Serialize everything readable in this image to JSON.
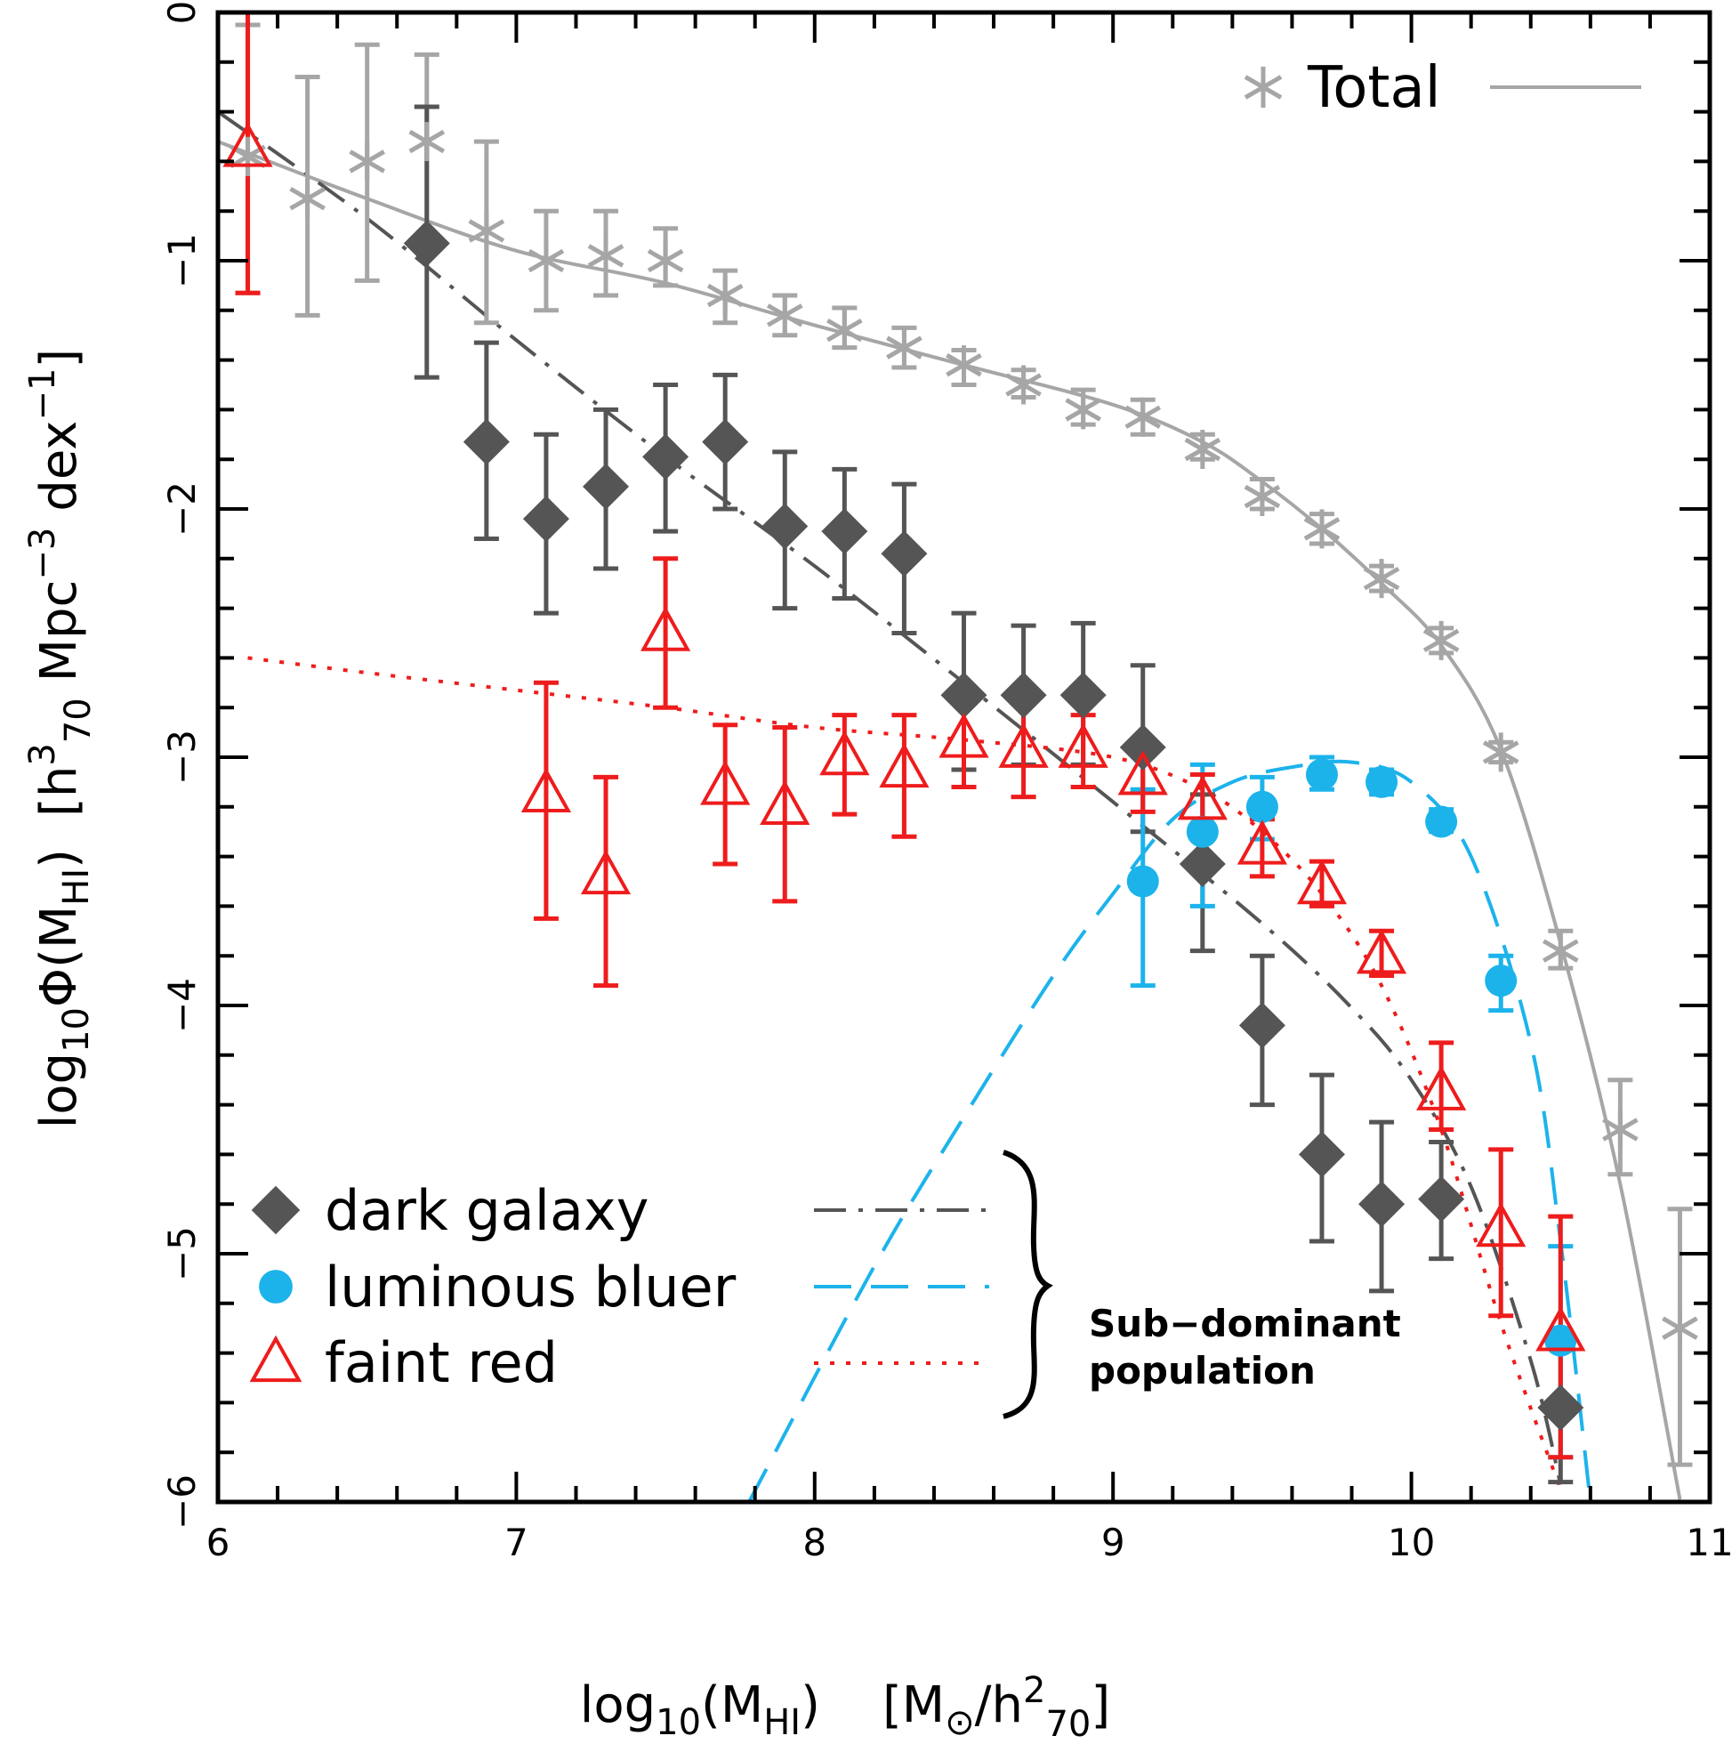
{
  "chart_data": {
    "type": "scatter",
    "title": "",
    "x_axis": {
      "label": "log10(MHI)   [M⊙/h²70]",
      "label_parts": {
        "log": "log",
        "log_sub": "10",
        "m": "(M",
        "m_sub": "HI",
        "paren": ")",
        "bracket_open": "[M",
        "sun": "⊙",
        "slash": "/h",
        "sup2": "2",
        "sub70": "70",
        "bracket_close": "]"
      },
      "range": [
        6,
        11
      ],
      "ticks": [
        6,
        7,
        8,
        9,
        10,
        11
      ],
      "tick_labels": [
        "6",
        "7",
        "8",
        "9",
        "10",
        "11"
      ],
      "minor_step": 0.2
    },
    "y_axis": {
      "label": "log10Φ(MHI)  [h³70 Mpc⁻³ dex⁻¹]",
      "label_parts": {
        "log": "log",
        "log_sub": "10",
        "phi": "Φ(M",
        "phi_sub": "HI",
        "paren": ")",
        "bracket_open": "[h",
        "sup3": "3",
        "sub70": "70",
        "mpc": "Mpc",
        "sup_m3": "−3",
        "dex": "dex",
        "sup_m1": "−1",
        "bracket_close": "]"
      },
      "range": [
        -6,
        0
      ],
      "ticks": [
        0,
        -1,
        -2,
        -3,
        -4,
        -5,
        -6
      ],
      "tick_labels": [
        "0",
        "−1",
        "−2",
        "−3",
        "−4",
        "−5",
        "−6"
      ],
      "minor_step": 0.2
    },
    "grid": false,
    "series": [
      {
        "name": "Total",
        "marker": "asterisk",
        "color": "#a6a6a6",
        "points": [
          {
            "x": 6.1,
            "y": -0.58,
            "lo": -1.13,
            "hi": -0.05
          },
          {
            "x": 6.3,
            "y": -0.75,
            "lo": -1.22,
            "hi": -0.26
          },
          {
            "x": 6.5,
            "y": -0.6,
            "lo": -1.08,
            "hi": -0.13
          },
          {
            "x": 6.7,
            "y": -0.52,
            "lo": -0.9,
            "hi": -0.17
          },
          {
            "x": 6.9,
            "y": -0.88,
            "lo": -1.25,
            "hi": -0.52
          },
          {
            "x": 7.1,
            "y": -1.0,
            "lo": -1.2,
            "hi": -0.8
          },
          {
            "x": 7.3,
            "y": -0.98,
            "lo": -1.14,
            "hi": -0.8
          },
          {
            "x": 7.5,
            "y": -1.0,
            "lo": -1.1,
            "hi": -0.87
          },
          {
            "x": 7.7,
            "y": -1.14,
            "lo": -1.25,
            "hi": -1.04
          },
          {
            "x": 7.9,
            "y": -1.22,
            "lo": -1.3,
            "hi": -1.14
          },
          {
            "x": 8.1,
            "y": -1.28,
            "lo": -1.35,
            "hi": -1.19
          },
          {
            "x": 8.3,
            "y": -1.35,
            "lo": -1.43,
            "hi": -1.27
          },
          {
            "x": 8.5,
            "y": -1.42,
            "lo": -1.5,
            "hi": -1.36
          },
          {
            "x": 8.7,
            "y": -1.5,
            "lo": -1.55,
            "hi": -1.44
          },
          {
            "x": 8.9,
            "y": -1.6,
            "lo": -1.66,
            "hi": -1.52
          },
          {
            "x": 9.1,
            "y": -1.63,
            "lo": -1.7,
            "hi": -1.56
          },
          {
            "x": 9.3,
            "y": -1.76,
            "lo": -1.8,
            "hi": -1.7
          },
          {
            "x": 9.5,
            "y": -1.95,
            "lo": -2.0,
            "hi": -1.88
          },
          {
            "x": 9.7,
            "y": -2.08,
            "lo": -2.14,
            "hi": -2.02
          },
          {
            "x": 9.9,
            "y": -2.28,
            "lo": -2.33,
            "hi": -2.23
          },
          {
            "x": 10.1,
            "y": -2.53,
            "lo": -2.58,
            "hi": -2.48
          },
          {
            "x": 10.3,
            "y": -2.98,
            "lo": -3.02,
            "hi": -2.94
          },
          {
            "x": 10.5,
            "y": -3.78,
            "lo": -3.85,
            "hi": -3.7
          },
          {
            "x": 10.7,
            "y": -4.5,
            "lo": -4.68,
            "hi": -4.3
          },
          {
            "x": 10.9,
            "y": -5.3,
            "lo": -5.85,
            "hi": -4.82
          }
        ]
      },
      {
        "name": "dark galaxy",
        "marker": "diamond",
        "color": "#555555",
        "points": [
          {
            "x": 6.7,
            "y": -0.93,
            "lo": -1.47,
            "hi": -0.38
          },
          {
            "x": 6.9,
            "y": -1.73,
            "lo": -2.12,
            "hi": -1.33
          },
          {
            "x": 7.1,
            "y": -2.04,
            "lo": -2.42,
            "hi": -1.7
          },
          {
            "x": 7.3,
            "y": -1.91,
            "lo": -2.24,
            "hi": -1.6
          },
          {
            "x": 7.5,
            "y": -1.79,
            "lo": -2.09,
            "hi": -1.5
          },
          {
            "x": 7.7,
            "y": -1.73,
            "lo": -2.0,
            "hi": -1.46
          },
          {
            "x": 7.9,
            "y": -2.07,
            "lo": -2.4,
            "hi": -1.77
          },
          {
            "x": 8.1,
            "y": -2.09,
            "lo": -2.36,
            "hi": -1.84
          },
          {
            "x": 8.3,
            "y": -2.18,
            "lo": -2.5,
            "hi": -1.9
          },
          {
            "x": 8.5,
            "y": -2.75,
            "lo": -3.05,
            "hi": -2.42
          },
          {
            "x": 8.7,
            "y": -2.75,
            "lo": -3.03,
            "hi": -2.47
          },
          {
            "x": 8.9,
            "y": -2.75,
            "lo": -3.03,
            "hi": -2.46
          },
          {
            "x": 9.1,
            "y": -2.96,
            "lo": -3.3,
            "hi": -2.63
          },
          {
            "x": 9.3,
            "y": -3.43,
            "lo": -3.78,
            "hi": -3.15
          },
          {
            "x": 9.5,
            "y": -4.08,
            "lo": -4.4,
            "hi": -3.8
          },
          {
            "x": 9.7,
            "y": -4.6,
            "lo": -4.95,
            "hi": -4.28
          },
          {
            "x": 9.9,
            "y": -4.8,
            "lo": -5.15,
            "hi": -4.47
          },
          {
            "x": 10.1,
            "y": -4.78,
            "lo": -5.02,
            "hi": -4.55
          },
          {
            "x": 10.5,
            "y": -5.62,
            "lo": -5.92,
            "hi": -5.38
          }
        ]
      },
      {
        "name": "luminous bluer",
        "marker": "circle",
        "color": "#1cb3eb",
        "points": [
          {
            "x": 9.1,
            "y": -3.5,
            "lo": -3.92,
            "hi": -3.13
          },
          {
            "x": 9.3,
            "y": -3.3,
            "lo": -3.6,
            "hi": -3.03
          },
          {
            "x": 9.5,
            "y": -3.2,
            "lo": -3.33,
            "hi": -3.08
          },
          {
            "x": 9.7,
            "y": -3.07,
            "lo": -3.13,
            "hi": -3.0
          },
          {
            "x": 9.9,
            "y": -3.1,
            "lo": -3.15,
            "hi": -3.05
          },
          {
            "x": 10.1,
            "y": -3.26,
            "lo": -3.3,
            "hi": -3.21
          },
          {
            "x": 10.3,
            "y": -3.9,
            "lo": -4.02,
            "hi": -3.8
          },
          {
            "x": 10.5,
            "y": -5.35,
            "lo": -5.82,
            "hi": -4.97
          }
        ]
      },
      {
        "name": "faint red",
        "marker": "triangle",
        "color": "#ee1c1c",
        "points": [
          {
            "x": 6.1,
            "y": -0.55,
            "lo": -1.13,
            "hi": 0.0
          },
          {
            "x": 7.1,
            "y": -3.15,
            "lo": -3.65,
            "hi": -2.7
          },
          {
            "x": 7.3,
            "y": -3.48,
            "lo": -3.92,
            "hi": -3.08
          },
          {
            "x": 7.5,
            "y": -2.5,
            "lo": -2.8,
            "hi": -2.2
          },
          {
            "x": 7.7,
            "y": -3.12,
            "lo": -3.43,
            "hi": -2.87
          },
          {
            "x": 7.9,
            "y": -3.2,
            "lo": -3.58,
            "hi": -2.88
          },
          {
            "x": 8.1,
            "y": -3.0,
            "lo": -3.23,
            "hi": -2.83
          },
          {
            "x": 8.3,
            "y": -3.05,
            "lo": -3.32,
            "hi": -2.83
          },
          {
            "x": 8.5,
            "y": -2.93,
            "lo": -3.12,
            "hi": -2.75
          },
          {
            "x": 8.7,
            "y": -2.97,
            "lo": -3.16,
            "hi": -2.78
          },
          {
            "x": 8.9,
            "y": -2.97,
            "lo": -3.12,
            "hi": -2.83
          },
          {
            "x": 9.1,
            "y": -3.08,
            "lo": -3.22,
            "hi": -2.95
          },
          {
            "x": 9.3,
            "y": -3.18,
            "lo": -3.3,
            "hi": -3.07
          },
          {
            "x": 9.5,
            "y": -3.36,
            "lo": -3.48,
            "hi": -3.25
          },
          {
            "x": 9.7,
            "y": -3.52,
            "lo": -3.6,
            "hi": -3.42
          },
          {
            "x": 9.9,
            "y": -3.8,
            "lo": -3.88,
            "hi": -3.7
          },
          {
            "x": 10.1,
            "y": -4.35,
            "lo": -4.5,
            "hi": -4.15
          },
          {
            "x": 10.3,
            "y": -4.9,
            "lo": -5.25,
            "hi": -4.58
          },
          {
            "x": 10.5,
            "y": -5.32,
            "lo": -5.82,
            "hi": -4.85
          }
        ]
      }
    ],
    "fit_curves": [
      {
        "name": "Total",
        "style": "solid",
        "color": "#a6a6a6",
        "x": [
          6.0,
          6.5,
          7.0,
          7.5,
          8.0,
          8.5,
          9.0,
          9.3,
          9.5,
          9.7,
          9.9,
          10.1,
          10.3,
          10.5,
          10.7,
          10.9
        ],
        "y": [
          -0.52,
          -0.75,
          -0.96,
          -1.09,
          -1.26,
          -1.42,
          -1.58,
          -1.73,
          -1.89,
          -2.08,
          -2.3,
          -2.55,
          -2.97,
          -3.75,
          -4.72,
          -5.99
        ]
      },
      {
        "name": "dark galaxy",
        "style": "dashdot",
        "color": "#555555",
        "x": [
          6.0,
          6.5,
          7.0,
          7.5,
          8.0,
          8.5,
          9.0,
          9.5,
          9.8,
          10.0,
          10.2,
          10.4,
          10.5
        ],
        "y": [
          -0.4,
          -0.83,
          -1.32,
          -1.79,
          -2.23,
          -2.7,
          -3.18,
          -3.67,
          -4.01,
          -4.3,
          -4.73,
          -5.43,
          -5.93
        ]
      },
      {
        "name": "luminous bluer",
        "style": "dashed",
        "color": "#1cb3eb",
        "x": [
          7.78,
          8.2,
          8.5,
          8.8,
          9.0,
          9.2,
          9.4,
          9.6,
          9.8,
          10.0,
          10.2,
          10.4,
          10.5,
          10.6
        ],
        "y": [
          -6.0,
          -5.05,
          -4.45,
          -3.88,
          -3.55,
          -3.25,
          -3.1,
          -3.04,
          -3.02,
          -3.1,
          -3.4,
          -4.15,
          -4.95,
          -6.0
        ]
      },
      {
        "name": "faint red",
        "style": "dotted",
        "color": "#ee1c1c",
        "x": [
          6.1,
          6.5,
          7.0,
          7.5,
          8.0,
          8.5,
          9.0,
          9.3,
          9.5,
          9.7,
          9.9,
          10.1,
          10.3,
          10.5
        ],
        "y": [
          -2.6,
          -2.66,
          -2.73,
          -2.8,
          -2.88,
          -2.93,
          -3.0,
          -3.13,
          -3.3,
          -3.55,
          -3.92,
          -4.5,
          -5.28,
          -5.95
        ]
      }
    ],
    "legend": {
      "top_right": {
        "label": "Total",
        "position": "top-right"
      },
      "bottom_left": {
        "items": [
          "dark galaxy",
          "luminous bluer",
          "faint red"
        ],
        "position": "bottom-left"
      },
      "brace_label": [
        "Sub−dominant",
        "population"
      ]
    }
  }
}
